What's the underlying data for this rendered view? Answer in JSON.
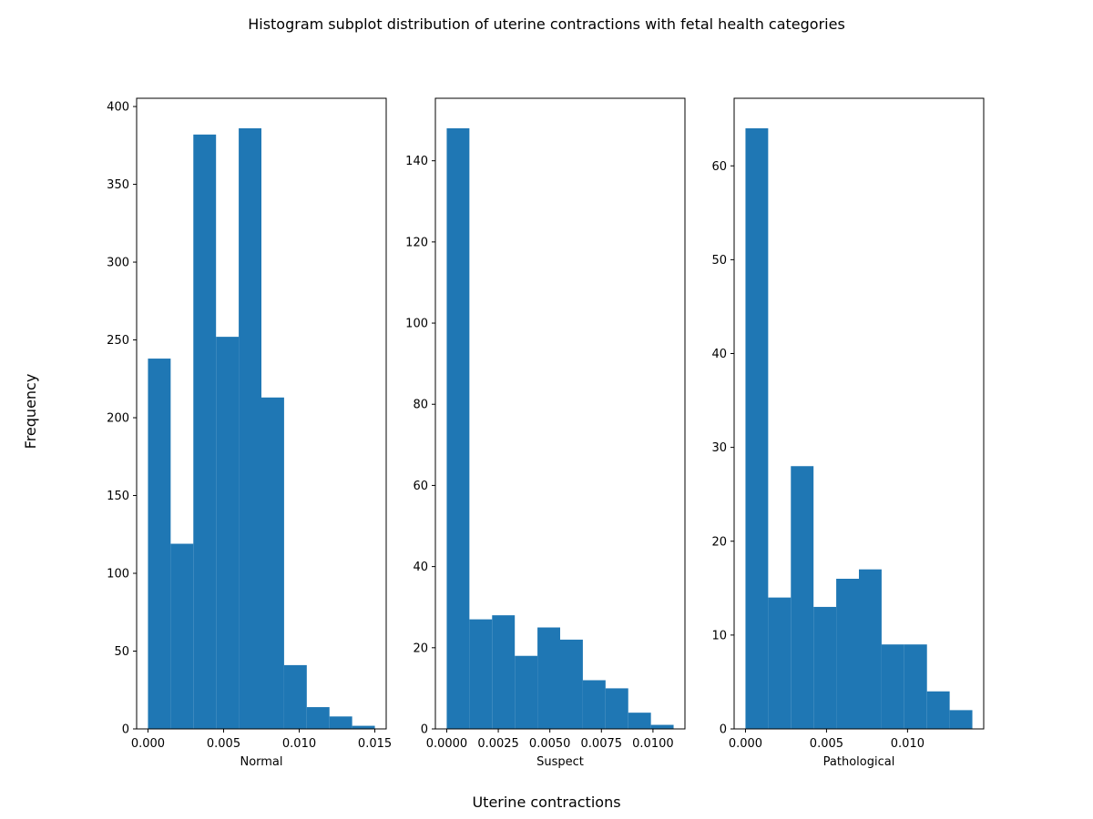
{
  "figure": {
    "suptitle": "Histogram subplot distribution of uterine contractions with fetal health categories",
    "supxlabel": "Uterine contractions",
    "supylabel": "Frequency",
    "bar_color": "#1f77b4"
  },
  "chart_data": [
    {
      "type": "bar",
      "histogram": true,
      "xlabel": "Normal",
      "ylabel": "",
      "bin_edges": [
        0.0,
        0.0015,
        0.003,
        0.0045,
        0.006,
        0.0075,
        0.009,
        0.0105,
        0.012,
        0.0135,
        0.015
      ],
      "values": [
        238,
        119,
        382,
        252,
        386,
        213,
        41,
        14,
        8,
        2
      ],
      "xlim": [
        -0.00075,
        0.01575
      ],
      "ylim": [
        0,
        405.3
      ],
      "xticks": [
        0.0,
        0.005,
        0.01,
        0.015
      ],
      "xtick_labels": [
        "0.000",
        "0.005",
        "0.010",
        "0.015"
      ],
      "yticks": [
        0,
        50,
        100,
        150,
        200,
        250,
        300,
        350,
        400
      ],
      "ytick_labels": [
        "0",
        "50",
        "100",
        "150",
        "200",
        "250",
        "300",
        "350",
        "400"
      ]
    },
    {
      "type": "bar",
      "histogram": true,
      "xlabel": "Suspect",
      "ylabel": "",
      "bin_edges": [
        0.0,
        0.0011,
        0.0022,
        0.0033,
        0.0044,
        0.0055,
        0.0066,
        0.0077,
        0.0088,
        0.0099,
        0.011
      ],
      "values": [
        148,
        27,
        28,
        18,
        25,
        22,
        12,
        10,
        4,
        1
      ],
      "xlim": [
        -0.00055,
        0.01155
      ],
      "ylim": [
        0,
        155.4
      ],
      "xticks": [
        0.0,
        0.0025,
        0.005,
        0.0075,
        0.01
      ],
      "xtick_labels": [
        "0.0000",
        "0.0025",
        "0.0050",
        "0.0075",
        "0.0100"
      ],
      "yticks": [
        0,
        20,
        40,
        60,
        80,
        100,
        120,
        140
      ],
      "ytick_labels": [
        "0",
        "20",
        "40",
        "60",
        "80",
        "100",
        "120",
        "140"
      ]
    },
    {
      "type": "bar",
      "histogram": true,
      "xlabel": "Pathological",
      "ylabel": "",
      "bin_edges": [
        0.0,
        0.0014,
        0.0028,
        0.0042,
        0.0056,
        0.007,
        0.0084,
        0.0098,
        0.0112,
        0.0126,
        0.014
      ],
      "values": [
        64,
        14,
        28,
        13,
        16,
        17,
        9,
        9,
        4,
        2
      ],
      "xlim": [
        -0.0007,
        0.0147
      ],
      "ylim": [
        0,
        67.2
      ],
      "xticks": [
        0.0,
        0.005,
        0.01
      ],
      "xtick_labels": [
        "0.000",
        "0.005",
        "0.010"
      ],
      "yticks": [
        0,
        10,
        20,
        30,
        40,
        50,
        60
      ],
      "ytick_labels": [
        "0",
        "10",
        "20",
        "30",
        "40",
        "50",
        "60"
      ]
    }
  ]
}
